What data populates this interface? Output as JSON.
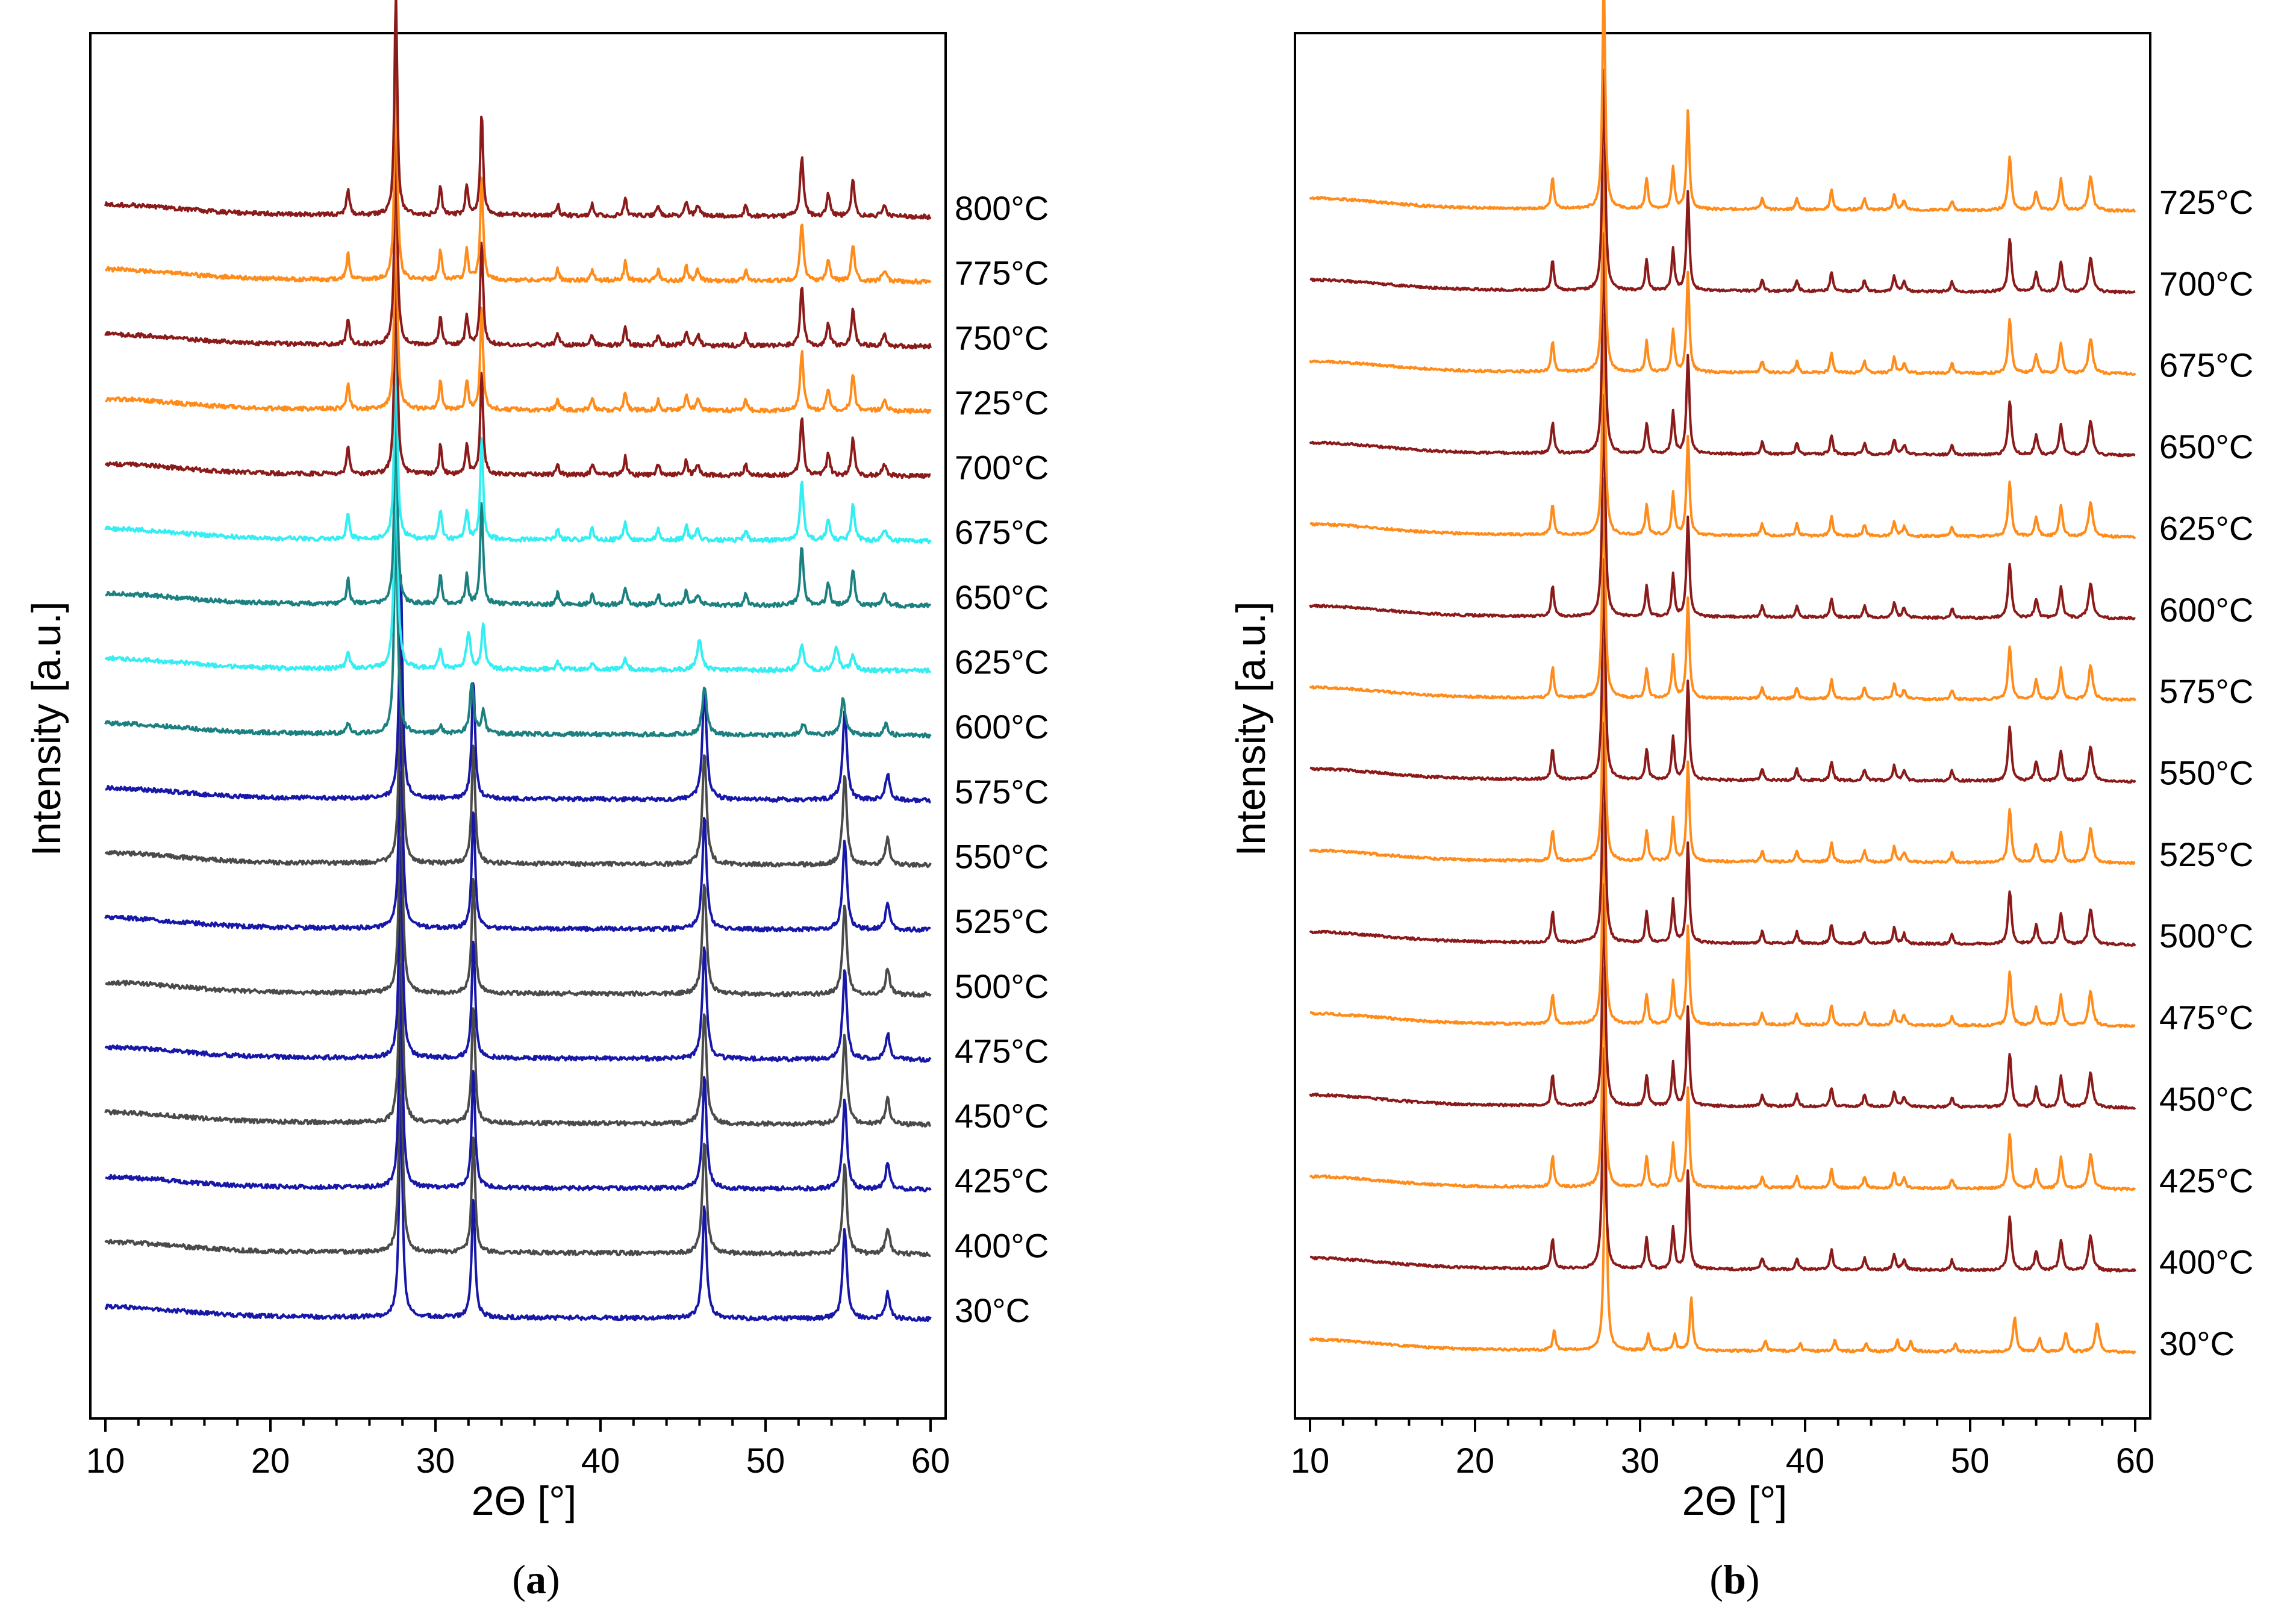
{
  "chart_data": [
    {
      "id": "a",
      "type": "line",
      "caption_letter": "a",
      "xlabel": "2Θ [°]",
      "ylabel": "Intensity [a.u.]",
      "xlim": [
        10,
        60
      ],
      "x_ticks": [
        10,
        20,
        30,
        40,
        50,
        60
      ],
      "grid": false,
      "series": [
        {
          "name": "30°C",
          "label": "30°C",
          "color": "#1717a8",
          "phase": "low",
          "amp": 1.0
        },
        {
          "name": "400°C",
          "label": "400°C",
          "color": "#4a4a4a",
          "phase": "low",
          "amp": 1.0
        },
        {
          "name": "425°C",
          "label": "425°C",
          "color": "#1717a8",
          "phase": "low",
          "amp": 1.0
        },
        {
          "name": "450°C",
          "label": "450°C",
          "color": "#4a4a4a",
          "phase": "low",
          "amp": 1.0
        },
        {
          "name": "475°C",
          "label": "475°C",
          "color": "#1717a8",
          "phase": "low",
          "amp": 1.0
        },
        {
          "name": "500°C",
          "label": "500°C",
          "color": "#4a4a4a",
          "phase": "low",
          "amp": 1.0
        },
        {
          "name": "525°C",
          "label": "525°C",
          "color": "#1717a8",
          "phase": "low",
          "amp": 1.0
        },
        {
          "name": "550°C",
          "label": "550°C",
          "color": "#4a4a4a",
          "phase": "low",
          "amp": 1.0
        },
        {
          "name": "575°C",
          "label": "575°C",
          "color": "#1717a8",
          "phase": "low",
          "amp": 1.0
        },
        {
          "name": "600°C",
          "label": "600°C",
          "color": "#1c8080",
          "phase": "mixed",
          "amp": 1.0
        },
        {
          "name": "625°C",
          "label": "625°C",
          "color": "#33eef2",
          "phase": "mixed2",
          "amp": 1.0
        },
        {
          "name": "650°C",
          "label": "650°C",
          "color": "#1c8080",
          "phase": "high",
          "amp": 1.0
        },
        {
          "name": "675°C",
          "label": "675°C",
          "color": "#33eef2",
          "phase": "high",
          "amp": 1.0
        },
        {
          "name": "700°C",
          "label": "700°C",
          "color": "#8b1a1a",
          "phase": "high",
          "amp": 1.0
        },
        {
          "name": "725°C",
          "label": "725°C",
          "color": "#ff8c1a",
          "phase": "high",
          "amp": 1.0
        },
        {
          "name": "750°C",
          "label": "750°C",
          "color": "#8b1a1a",
          "phase": "high",
          "amp": 1.0
        },
        {
          "name": "775°C",
          "label": "775°C",
          "color": "#ff8c1a",
          "phase": "high",
          "amp": 1.0
        },
        {
          "name": "800°C",
          "label": "800°C",
          "color": "#8b1a1a",
          "phase": "high",
          "amp": 1.0
        }
      ],
      "peak_sets": {
        "low": [
          [
            27.9,
            6.0,
            0.12
          ],
          [
            32.3,
            3.2,
            0.12
          ],
          [
            46.3,
            3.0,
            0.15
          ],
          [
            54.8,
            2.4,
            0.15
          ],
          [
            57.4,
            0.7,
            0.15
          ]
        ],
        "mixed": [
          [
            24.7,
            0.25,
            0.12
          ],
          [
            27.6,
            6.0,
            0.12
          ],
          [
            30.3,
            0.2,
            0.12
          ],
          [
            32.2,
            1.4,
            0.14
          ],
          [
            32.9,
            0.6,
            0.12
          ],
          [
            46.3,
            1.3,
            0.16
          ],
          [
            52.3,
            0.3,
            0.15
          ],
          [
            54.7,
            1.0,
            0.16
          ],
          [
            57.3,
            0.3,
            0.15
          ]
        ],
        "mixed2": [
          [
            24.7,
            0.5,
            0.12
          ],
          [
            27.6,
            6.0,
            0.12
          ],
          [
            30.3,
            0.5,
            0.12
          ],
          [
            32.0,
            1.0,
            0.14
          ],
          [
            32.9,
            1.2,
            0.12
          ],
          [
            37.4,
            0.2,
            0.12
          ],
          [
            39.5,
            0.2,
            0.12
          ],
          [
            41.5,
            0.3,
            0.12
          ],
          [
            46.0,
            0.8,
            0.16
          ],
          [
            52.2,
            0.7,
            0.15
          ],
          [
            54.3,
            0.6,
            0.16
          ],
          [
            55.3,
            0.4,
            0.15
          ]
        ],
        "high": [
          [
            24.7,
            0.7,
            0.1
          ],
          [
            27.6,
            6.0,
            0.1
          ],
          [
            30.3,
            0.8,
            0.1
          ],
          [
            31.9,
            0.8,
            0.1
          ],
          [
            32.8,
            2.8,
            0.1
          ],
          [
            37.4,
            0.3,
            0.1
          ],
          [
            39.5,
            0.3,
            0.1
          ],
          [
            41.5,
            0.5,
            0.1
          ],
          [
            43.5,
            0.3,
            0.1
          ],
          [
            45.2,
            0.4,
            0.1
          ],
          [
            45.9,
            0.3,
            0.12
          ],
          [
            48.8,
            0.3,
            0.1
          ],
          [
            52.2,
            1.6,
            0.12
          ],
          [
            53.8,
            0.6,
            0.12
          ],
          [
            55.3,
            1.0,
            0.12
          ],
          [
            57.2,
            0.3,
            0.15
          ]
        ]
      }
    },
    {
      "id": "b",
      "type": "line",
      "caption_letter": "b",
      "xlabel": "2Θ [°]",
      "ylabel": "Intensity [a.u.]",
      "xlim": [
        10,
        60
      ],
      "x_ticks": [
        10,
        20,
        30,
        40,
        50,
        60
      ],
      "grid": false,
      "series": [
        {
          "name": "30°C",
          "label": "30°C",
          "color": "#ff8c1a",
          "phase": "room",
          "amp": 1.0
        },
        {
          "name": "400°C",
          "label": "400°C",
          "color": "#8b1a1a",
          "phase": "b",
          "amp": 1.0
        },
        {
          "name": "425°C",
          "label": "425°C",
          "color": "#ff8c1a",
          "phase": "b",
          "amp": 1.0
        },
        {
          "name": "450°C",
          "label": "450°C",
          "color": "#8b1a1a",
          "phase": "b",
          "amp": 1.0
        },
        {
          "name": "475°C",
          "label": "475°C",
          "color": "#ff8c1a",
          "phase": "b",
          "amp": 1.0
        },
        {
          "name": "500°C",
          "label": "500°C",
          "color": "#8b1a1a",
          "phase": "b",
          "amp": 1.0
        },
        {
          "name": "525°C",
          "label": "525°C",
          "color": "#ff8c1a",
          "phase": "b",
          "amp": 1.0
        },
        {
          "name": "550°C",
          "label": "550°C",
          "color": "#8b1a1a",
          "phase": "b",
          "amp": 1.0
        },
        {
          "name": "575°C",
          "label": "575°C",
          "color": "#ff8c1a",
          "phase": "b",
          "amp": 1.0
        },
        {
          "name": "600°C",
          "label": "600°C",
          "color": "#8b1a1a",
          "phase": "b",
          "amp": 1.0
        },
        {
          "name": "625°C",
          "label": "625°C",
          "color": "#ff8c1a",
          "phase": "b",
          "amp": 1.0
        },
        {
          "name": "650°C",
          "label": "650°C",
          "color": "#8b1a1a",
          "phase": "b",
          "amp": 1.0
        },
        {
          "name": "675°C",
          "label": "675°C",
          "color": "#ff8c1a",
          "phase": "b",
          "amp": 1.0
        },
        {
          "name": "700°C",
          "label": "700°C",
          "color": "#8b1a1a",
          "phase": "b",
          "amp": 1.0
        },
        {
          "name": "725°C",
          "label": "725°C",
          "color": "#ff8c1a",
          "phase": "b",
          "amp": 1.0
        }
      ],
      "peak_sets": {
        "room": [
          [
            24.8,
            0.5,
            0.1
          ],
          [
            27.9,
            6.0,
            0.1
          ],
          [
            30.5,
            0.45,
            0.1
          ],
          [
            32.1,
            0.4,
            0.1
          ],
          [
            33.1,
            1.4,
            0.1
          ],
          [
            37.6,
            0.25,
            0.1
          ],
          [
            39.7,
            0.2,
            0.1
          ],
          [
            41.8,
            0.3,
            0.1
          ],
          [
            43.7,
            0.2,
            0.1
          ],
          [
            45.6,
            0.3,
            0.1
          ],
          [
            46.4,
            0.25,
            0.12
          ],
          [
            49.1,
            0.2,
            0.1
          ],
          [
            52.7,
            0.9,
            0.12
          ],
          [
            54.2,
            0.35,
            0.12
          ],
          [
            55.8,
            0.5,
            0.12
          ],
          [
            57.7,
            0.75,
            0.15
          ]
        ],
        "b": [
          [
            24.7,
            0.8,
            0.1
          ],
          [
            27.8,
            6.0,
            0.1
          ],
          [
            30.4,
            0.8,
            0.1
          ],
          [
            32.0,
            1.1,
            0.1
          ],
          [
            32.9,
            2.6,
            0.1
          ],
          [
            37.4,
            0.3,
            0.1
          ],
          [
            39.5,
            0.3,
            0.1
          ],
          [
            41.6,
            0.5,
            0.1
          ],
          [
            43.6,
            0.3,
            0.1
          ],
          [
            45.4,
            0.4,
            0.1
          ],
          [
            46.0,
            0.25,
            0.12
          ],
          [
            48.9,
            0.25,
            0.1
          ],
          [
            52.4,
            1.4,
            0.12
          ],
          [
            54.0,
            0.5,
            0.12
          ],
          [
            55.5,
            0.8,
            0.12
          ],
          [
            57.3,
            0.9,
            0.15
          ]
        ]
      }
    }
  ]
}
